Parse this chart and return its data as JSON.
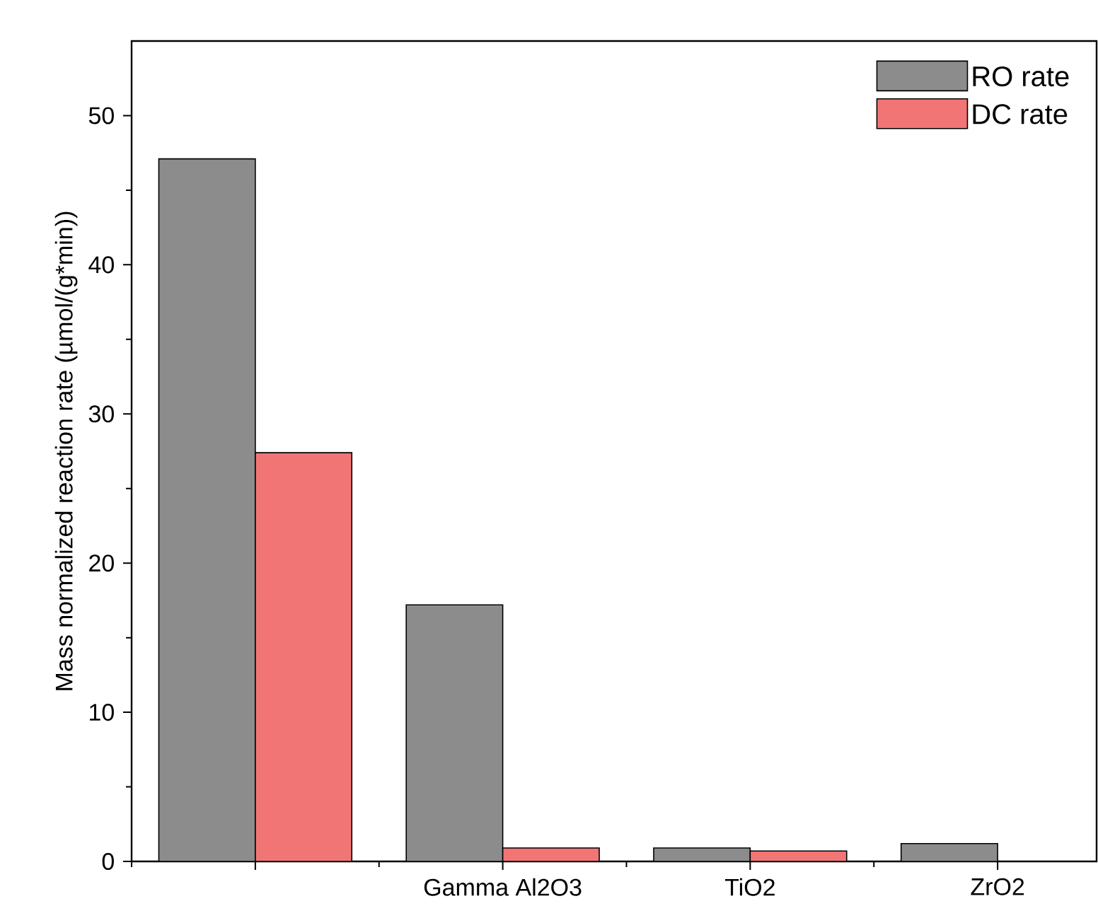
{
  "chart_data": {
    "type": "bar",
    "ylabel": "Mass normalized reaction rate (µmol/(g*min))",
    "categories": [
      null,
      "Gamma Al2O3",
      "TiO2",
      "ZrO2"
    ],
    "series": [
      {
        "name": "RO rate",
        "color": "#8c8c8c",
        "values": [
          47.1,
          17.2,
          0.9,
          1.2
        ]
      },
      {
        "name": "DC rate",
        "color": "#f27575",
        "values": [
          27.4,
          0.9,
          0.7,
          null
        ]
      }
    ],
    "ylim": [
      0,
      55
    ],
    "yticks": [
      0,
      10,
      20,
      30,
      40,
      50
    ],
    "grid": false,
    "legend": "top right"
  }
}
